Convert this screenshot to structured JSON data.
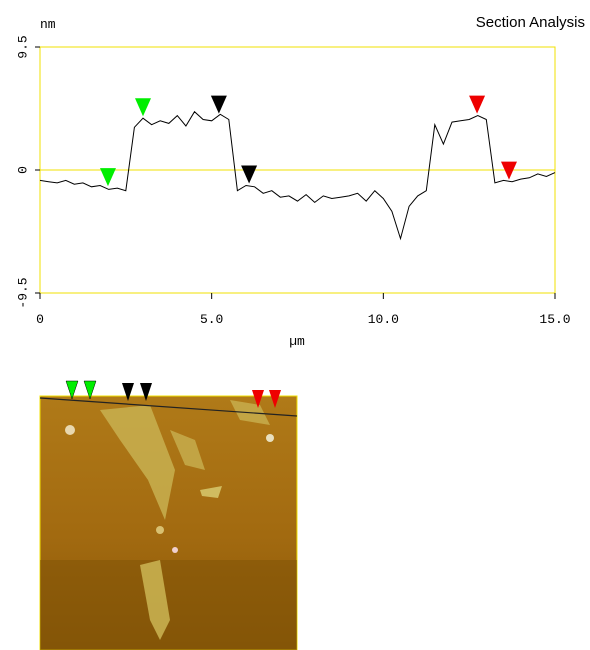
{
  "chart_data": {
    "type": "line",
    "title": "Section Analysis",
    "y_label": "nm",
    "x_label": "µm",
    "color": "#000000",
    "frame_color": "#f0e000",
    "xlim": [
      0,
      15
    ],
    "xticks": [
      0,
      {
        "value": 5,
        "label": "5.0"
      },
      {
        "value": 10,
        "label": "10.0"
      },
      {
        "value": 15,
        "label": "15.0"
      }
    ],
    "ylim": [
      -9.5,
      9.5
    ],
    "yticks": [
      -9.5,
      0,
      9.5
    ],
    "x": [
      0,
      0.25,
      0.5,
      0.75,
      1,
      1.25,
      1.5,
      1.75,
      2,
      2.25,
      2.5,
      2.75,
      3,
      3.25,
      3.5,
      3.75,
      4,
      4.25,
      4.5,
      4.75,
      5,
      5.25,
      5.5,
      5.75,
      6,
      6.25,
      6.5,
      6.75,
      7,
      7.25,
      7.5,
      7.75,
      8,
      8.25,
      8.5,
      8.75,
      9,
      9.25,
      9.5,
      9.75,
      10,
      10.25,
      10.5,
      10.75,
      11,
      11.25,
      11.5,
      11.75,
      12,
      12.25,
      12.5,
      12.75,
      13,
      13.25,
      13.5,
      13.75,
      14,
      14.25,
      14.5,
      14.75,
      15
    ],
    "values": [
      -0.8,
      -0.9,
      -1.0,
      -0.8,
      -1.1,
      -1.0,
      -1.3,
      -1.2,
      -1.5,
      -1.4,
      -1.6,
      3.3,
      4.0,
      3.5,
      3.8,
      3.6,
      4.2,
      3.4,
      4.5,
      3.9,
      3.8,
      4.3,
      3.9,
      -1.6,
      -1.2,
      -1.3,
      -1.8,
      -1.6,
      -2.1,
      -2.0,
      -2.4,
      -1.9,
      -2.5,
      -2.0,
      -2.2,
      -2.1,
      -2.0,
      -1.8,
      -2.4,
      -1.6,
      -2.2,
      -3.2,
      -5.3,
      -2.8,
      -2.0,
      -1.6,
      3.5,
      2.0,
      3.7,
      3.8,
      3.9,
      4.2,
      3.9,
      -1.0,
      -0.8,
      -0.9,
      -0.7,
      -0.6,
      -0.3,
      -0.5,
      -0.2
    ],
    "cursors": [
      {
        "color": "#00ee00",
        "x": 1.98,
        "y": -1.4
      },
      {
        "color": "#00ee00",
        "x": 3.0,
        "y": 4.0
      },
      {
        "color": "#000000",
        "x": 5.21,
        "y": 4.2
      },
      {
        "color": "#000000",
        "x": 6.09,
        "y": -1.2
      },
      {
        "color": "#ee0000",
        "x": 12.73,
        "y": 4.2
      },
      {
        "color": "#ee0000",
        "x": 13.66,
        "y": -0.9
      }
    ]
  }
}
